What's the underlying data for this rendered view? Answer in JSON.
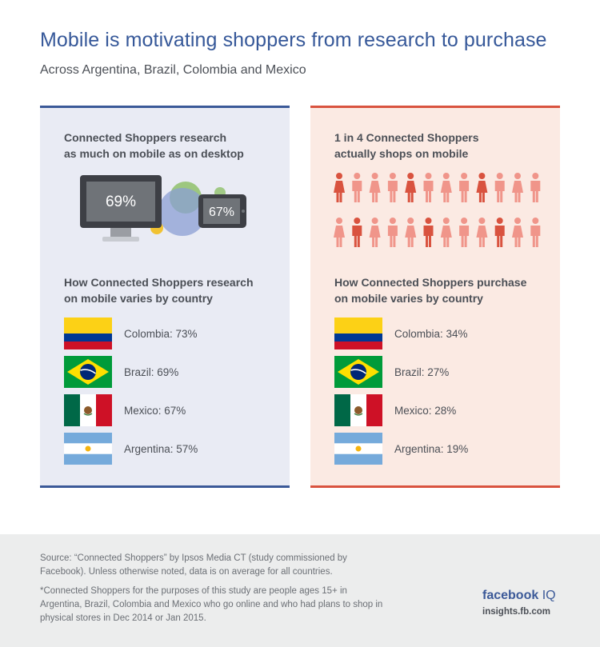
{
  "header": {
    "title": "Mobile is motivating shoppers from research to purchase",
    "subtitle": "Across Argentina, Brazil, Colombia and Mexico"
  },
  "left_panel": {
    "heading": [
      "Connected Shoppers research",
      "as much on mobile as on desktop"
    ],
    "desktop_stat": "69%",
    "mobile_stat": "67%",
    "subheading": [
      "How Connected Shoppers research",
      "on mobile varies by country"
    ],
    "countries": [
      {
        "label": "Colombia: 73%",
        "flag": "colombia-flag",
        "value": 73
      },
      {
        "label": "Brazil: 69%",
        "flag": "brazil-flag",
        "value": 69
      },
      {
        "label": "Mexico: 67%",
        "flag": "mexico-flag",
        "value": 67
      },
      {
        "label": "Argentina: 57%",
        "flag": "argentina-flag",
        "value": 57
      }
    ]
  },
  "right_panel": {
    "heading": [
      "1 in 4 Connected Shoppers",
      "actually shops on mobile"
    ],
    "people_icons": {
      "total": 24,
      "highlighted": 6,
      "highlight_color": "#d9533f",
      "base_color": "#f0958a"
    },
    "subheading": [
      "How Connected Shoppers purchase",
      "on mobile varies by country"
    ],
    "countries": [
      {
        "label": "Colombia: 34%",
        "flag": "colombia-flag",
        "value": 34
      },
      {
        "label": "Brazil: 27%",
        "flag": "brazil-flag",
        "value": 27
      },
      {
        "label": "Mexico: 28%",
        "flag": "mexico-flag",
        "value": 28
      },
      {
        "label": "Argentina: 19%",
        "flag": "argentina-flag",
        "value": 19
      }
    ]
  },
  "footer": {
    "source": "Source: “Connected Shoppers” by Ipsos Media CT (study commissioned by Facebook). Unless otherwise noted, data is on average for all countries.",
    "note": "*Connected Shoppers for the purposes of this study are people ages 15+ in Argentina, Brazil, Colombia and Mexico who go online and who had plans to shop in physical stores in Dec 2014 or Jan 2015.",
    "brand": "facebook",
    "brand_suffix": "IQ",
    "url": "insights.fb.com"
  },
  "colors": {
    "brand_blue": "#3b5998",
    "accent_red": "#d9533f",
    "left_bg": "#e9ebf4",
    "right_bg": "#fbeae3"
  }
}
